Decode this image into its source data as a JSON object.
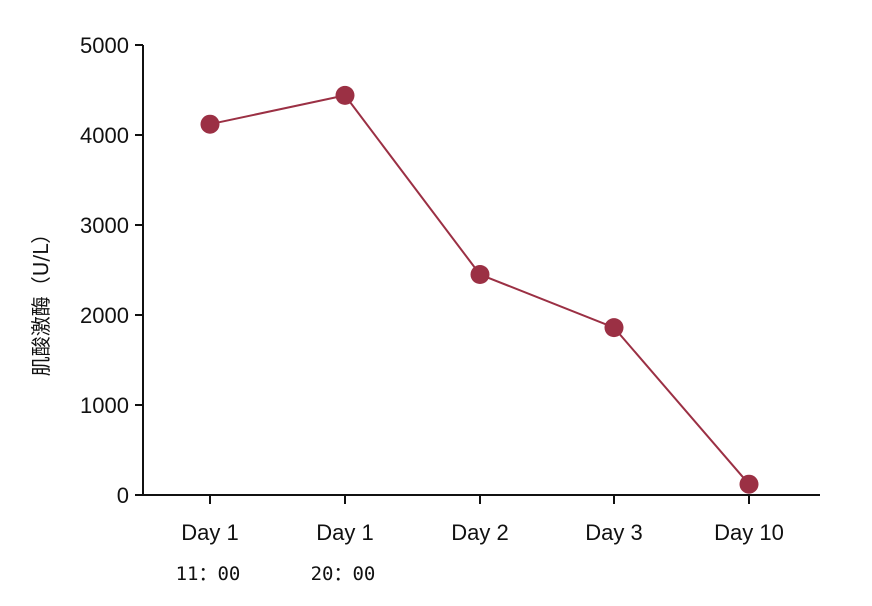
{
  "chart_data": {
    "type": "line",
    "title": "",
    "xlabel": "",
    "ylabel": "肌酸激酶（U/L）",
    "categories": [
      "Day 1",
      "Day 1",
      "Day 2",
      "Day 3",
      "Day 10"
    ],
    "category_sublabels": [
      "11：00",
      "20：00",
      "",
      "",
      ""
    ],
    "values": [
      4120,
      4440,
      2450,
      1860,
      120
    ],
    "ylim": [
      0,
      5000
    ],
    "yticks": [
      0,
      1000,
      2000,
      3000,
      4000,
      5000
    ],
    "grid": false,
    "legend": "none",
    "colors": {
      "series": "#9b3044",
      "axis": "#111111"
    }
  }
}
